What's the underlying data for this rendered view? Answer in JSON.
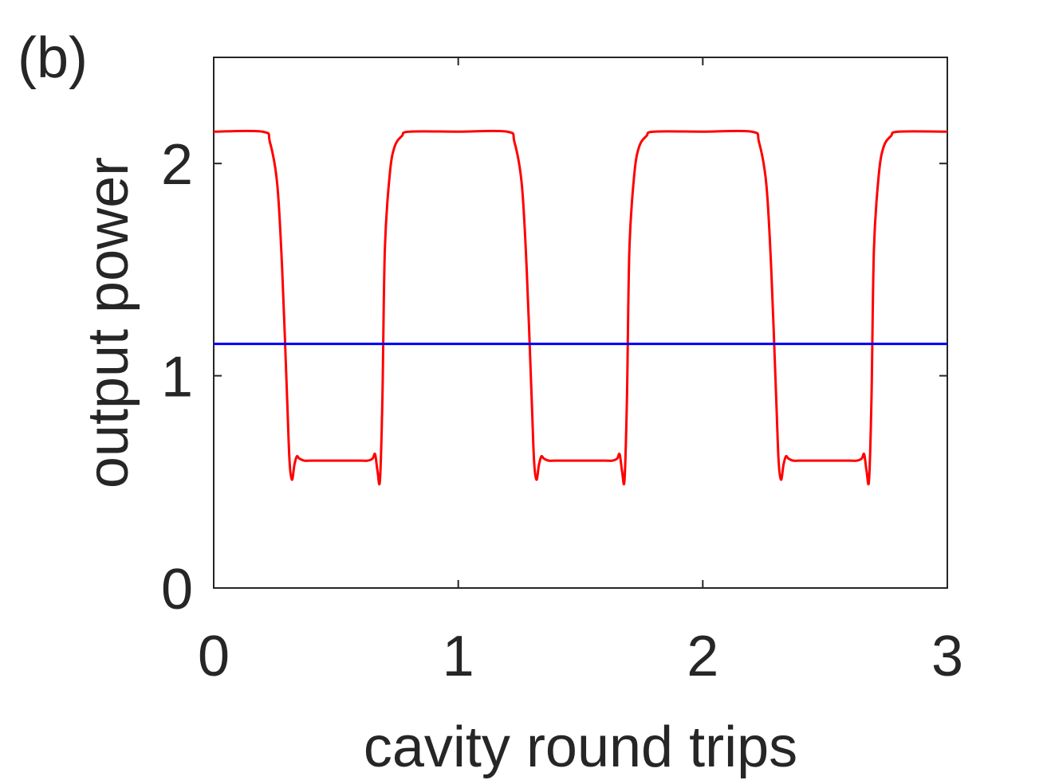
{
  "panel_label": "(b)",
  "chart_data": {
    "type": "line",
    "xlabel": "cavity round trips",
    "ylabel": "output power",
    "xlim": [
      0,
      3
    ],
    "ylim": [
      0,
      2.5
    ],
    "xticks": [
      "0",
      "1",
      "2",
      "3"
    ],
    "yticks": [
      "0",
      "1",
      "2"
    ],
    "grid": false,
    "legend": "none",
    "series": [
      {
        "color": "#ff0000",
        "period": 1,
        "high": 2.15,
        "low": 0.6,
        "min": 0.51,
        "x": [
          0.0,
          0.2,
          0.23,
          0.26,
          0.28,
          0.3,
          0.31,
          0.32,
          0.33,
          0.34,
          0.35,
          0.37,
          0.4,
          0.5,
          0.6,
          0.63,
          0.65,
          0.66,
          0.67,
          0.68,
          0.69,
          0.7,
          0.72,
          0.74,
          0.77,
          0.8,
          1.0
        ],
        "y": [
          2.15,
          2.15,
          2.1,
          1.9,
          1.5,
          0.9,
          0.6,
          0.51,
          0.58,
          0.62,
          0.61,
          0.6,
          0.6,
          0.6,
          0.6,
          0.6,
          0.61,
          0.63,
          0.55,
          0.51,
          0.9,
          1.6,
          1.95,
          2.08,
          2.13,
          2.15,
          2.15
        ]
      },
      {
        "color": "#0000ff",
        "x": [
          0,
          3
        ],
        "y": [
          1.15,
          1.15
        ]
      }
    ]
  }
}
